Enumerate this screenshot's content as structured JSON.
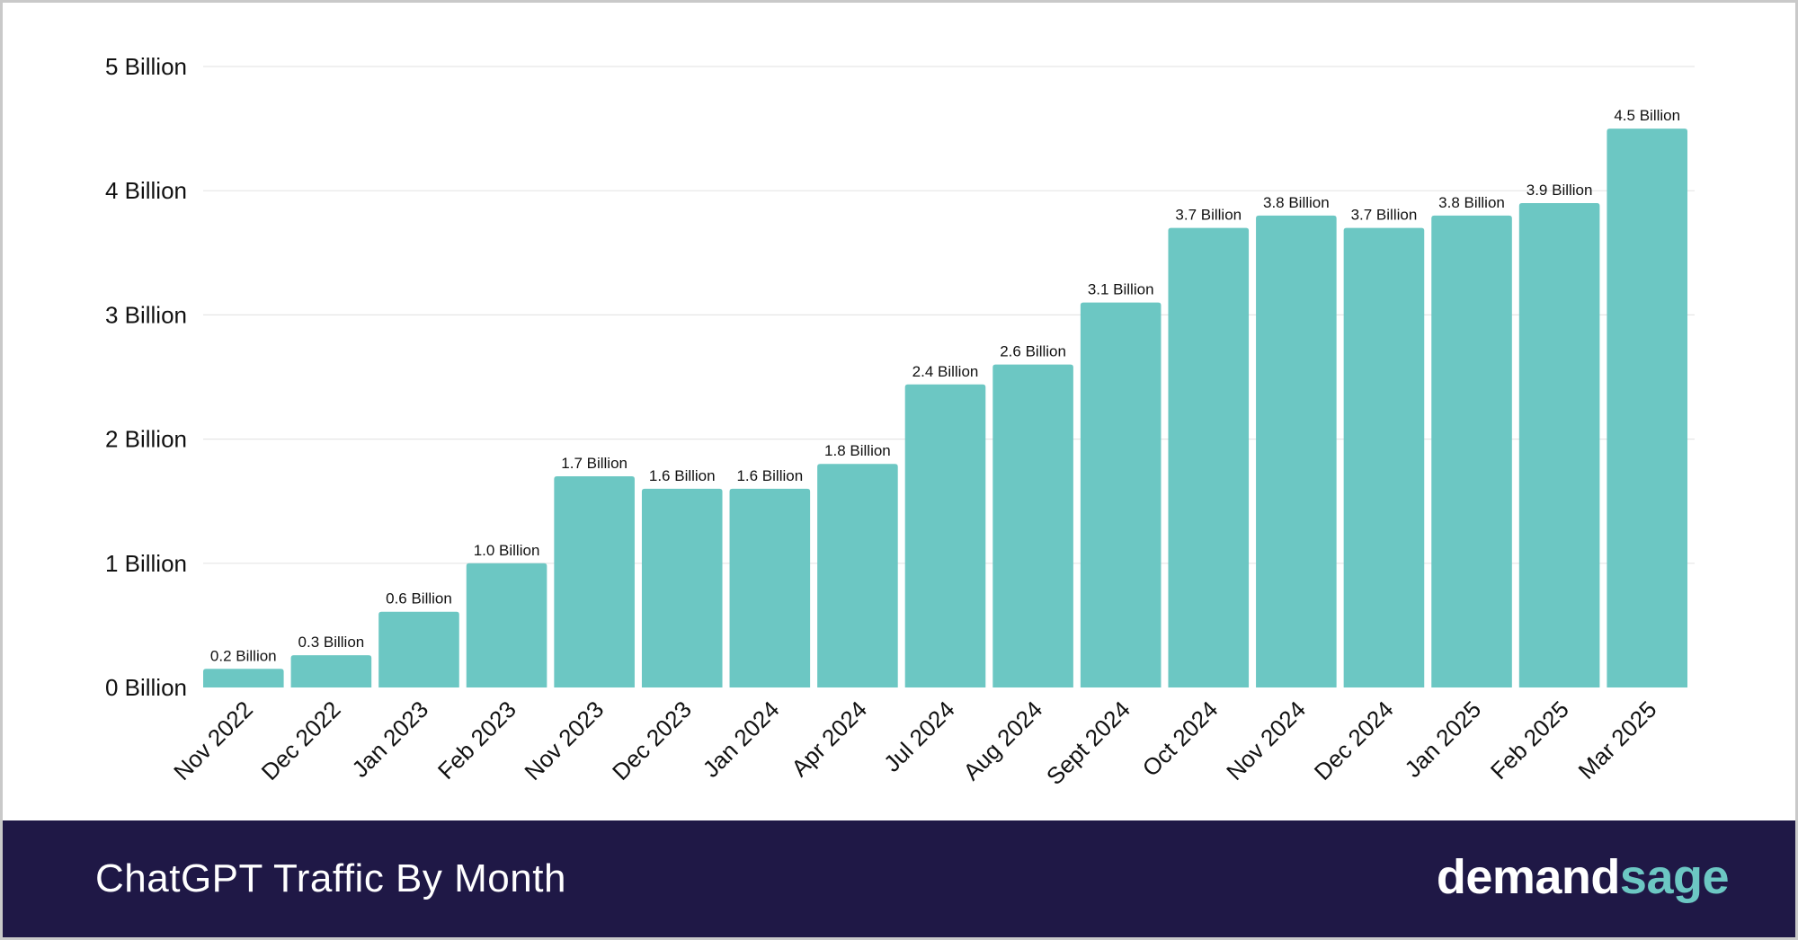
{
  "footer": {
    "title": "ChatGPT Traffic By Month",
    "brand_part1": "demand",
    "brand_part2": "sage"
  },
  "colors": {
    "bar": "#6cc7c3",
    "footer_bg": "#1f1846",
    "brand_accent": "#6cc7c3"
  },
  "chart_data": {
    "type": "bar",
    "title": "ChatGPT Traffic By Month",
    "xlabel": "",
    "ylabel": "",
    "ylim": [
      0,
      5
    ],
    "yticks": [
      {
        "value": 0,
        "label": "0 Billion"
      },
      {
        "value": 1,
        "label": "1 Billion"
      },
      {
        "value": 2,
        "label": "2 Billion"
      },
      {
        "value": 3,
        "label": "3 Billion"
      },
      {
        "value": 4,
        "label": "4 Billion"
      },
      {
        "value": 5,
        "label": "5 Billion"
      }
    ],
    "categories": [
      "Nov 2022",
      "Dec 2022",
      "Jan 2023",
      "Feb 2023",
      "Nov 2023",
      "Dec 2023",
      "Jan 2024",
      "Apr 2024",
      "Jul 2024",
      "Aug 2024",
      "Sept 2024",
      "Oct 2024",
      "Nov 2024",
      "Dec 2024",
      "Jan 2025",
      "Feb 2025",
      "Mar 2025"
    ],
    "values": [
      0.15,
      0.26,
      0.61,
      1.0,
      1.7,
      1.6,
      1.6,
      1.8,
      2.44,
      2.6,
      3.1,
      3.7,
      3.8,
      3.7,
      3.8,
      3.9,
      4.5
    ],
    "data_labels": [
      "0.2 Billion",
      "0.3 Billion",
      "0.6 Billion",
      "1.0 Billion",
      "1.7 Billion",
      "1.6 Billion",
      "1.6 Billion",
      "1.8 Billion",
      "2.4 Billion",
      "2.6 Billion",
      "3.1 Billion",
      "3.7 Billion",
      "3.8 Billion",
      "3.7 Billion",
      "3.8 Billion",
      "3.9 Billion",
      "4.5 Billion"
    ],
    "grid": true,
    "legend": "none"
  }
}
